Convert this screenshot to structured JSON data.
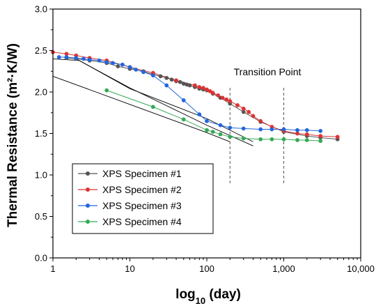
{
  "chart_data": {
    "type": "scatter",
    "xlabel": "log",
    "xlabel_sub": "10",
    "xlabel_suffix": " (day)",
    "ylabel": "Thermal Resistance (m²·K/W)",
    "xscale": "log",
    "xlim": [
      1,
      10000
    ],
    "ylim": [
      0.0,
      3.0
    ],
    "xticks": [
      1,
      10,
      100,
      1000,
      10000
    ],
    "xtick_labels": [
      "1",
      "10",
      "100",
      "1,000",
      "10,000"
    ],
    "yticks": [
      0.0,
      0.5,
      1.0,
      1.5,
      2.0,
      2.5,
      3.0
    ],
    "ytick_labels": [
      "0.0",
      "0.5",
      "1.0",
      "1.5",
      "2.0",
      "2.5",
      "3.0"
    ],
    "grid": false,
    "legend_position": "bottom-left",
    "annotation": {
      "text": "Transition Point",
      "lines_x": [
        200,
        1000
      ]
    },
    "series": [
      {
        "name": "XPS Specimen #1",
        "color": "#555555",
        "x": [
          1.5,
          2,
          3,
          5,
          7,
          10,
          15,
          20,
          25,
          30,
          35,
          40,
          45,
          50,
          55,
          60,
          70,
          80,
          90,
          100,
          120,
          150,
          200,
          300,
          500,
          1000,
          2000,
          3000,
          5000
        ],
        "y": [
          2.41,
          2.4,
          2.38,
          2.35,
          2.31,
          2.28,
          2.25,
          2.21,
          2.19,
          2.17,
          2.15,
          2.13,
          2.12,
          2.1,
          2.09,
          2.08,
          2.06,
          2.04,
          2.03,
          2.02,
          1.98,
          1.93,
          1.86,
          1.76,
          1.64,
          1.52,
          1.47,
          1.45,
          1.43
        ],
        "fit_line": [
          [
            1,
            2.4
          ],
          [
            2.2,
            2.38
          ],
          [
            10,
            2.04
          ],
          [
            100,
            1.68
          ],
          [
            400,
            1.4
          ]
        ]
      },
      {
        "name": "XPS Specimen #2",
        "color": "#dd3333",
        "x": [
          1,
          1.5,
          2,
          3,
          5,
          10,
          20,
          40,
          70,
          80,
          90,
          100,
          110,
          120,
          140,
          160,
          180,
          200,
          250,
          300,
          350,
          400,
          500,
          700,
          1000,
          1500,
          2000,
          3000,
          5000
        ],
        "y": [
          2.48,
          2.46,
          2.44,
          2.41,
          2.38,
          2.3,
          2.23,
          2.14,
          2.08,
          2.06,
          2.05,
          2.03,
          2.01,
          1.99,
          1.96,
          1.93,
          1.91,
          1.89,
          1.84,
          1.8,
          1.76,
          1.71,
          1.65,
          1.58,
          1.53,
          1.5,
          1.49,
          1.47,
          1.46
        ]
      },
      {
        "name": "XPS Specimen #3",
        "color": "#2266dd",
        "x": [
          1.2,
          1.5,
          2,
          2.5,
          3,
          4,
          5,
          6,
          8,
          10,
          12,
          15,
          20,
          30,
          50,
          80,
          100,
          150,
          200,
          300,
          500,
          700,
          1000,
          1500,
          2000,
          3000
        ],
        "y": [
          2.42,
          2.42,
          2.41,
          2.4,
          2.39,
          2.38,
          2.36,
          2.35,
          2.33,
          2.3,
          2.27,
          2.24,
          2.2,
          2.08,
          1.9,
          1.73,
          1.65,
          1.6,
          1.57,
          1.56,
          1.55,
          1.55,
          1.55,
          1.54,
          1.54,
          1.53
        ],
        "fit_line": [
          [
            2,
            2.4
          ],
          [
            10,
            2.05
          ],
          [
            100,
            1.6
          ],
          [
            400,
            1.35
          ]
        ]
      },
      {
        "name": "XPS Specimen #4",
        "color": "#33aa55",
        "x": [
          5,
          20,
          50,
          100,
          120,
          150,
          200,
          300,
          500,
          700,
          1000,
          1500,
          2000,
          3000
        ],
        "y": [
          2.02,
          1.82,
          1.67,
          1.54,
          1.52,
          1.49,
          1.46,
          1.44,
          1.43,
          1.43,
          1.43,
          1.42,
          1.42,
          1.41
        ],
        "fit_line": [
          [
            1,
            2.19
          ],
          [
            10,
            1.85
          ],
          [
            100,
            1.51
          ],
          [
            200,
            1.4
          ]
        ]
      }
    ]
  }
}
